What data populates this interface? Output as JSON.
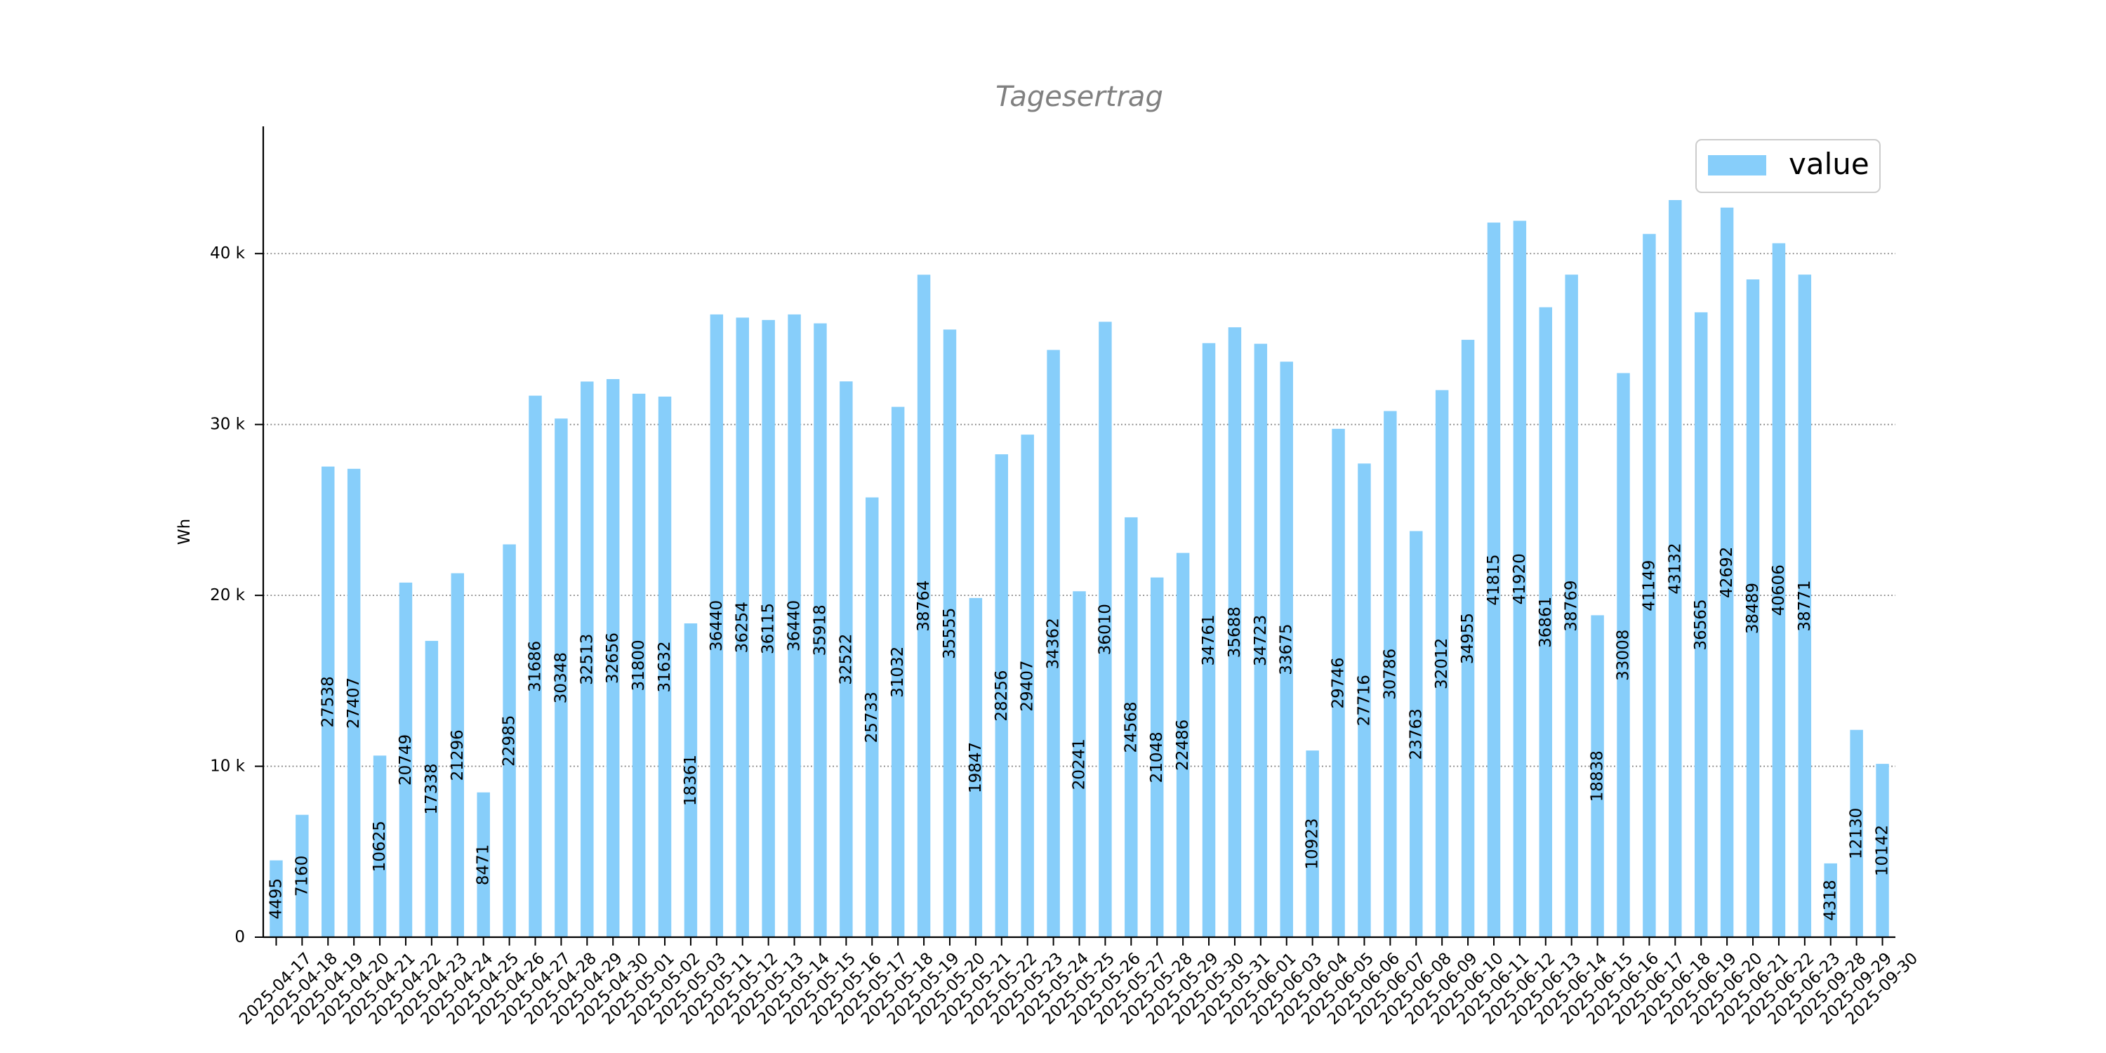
{
  "chart_data": {
    "type": "bar",
    "title": "Tagesertrag",
    "ylabel": "Wh",
    "categories": [
      "2025-04-17",
      "2025-04-18",
      "2025-04-19",
      "2025-04-20",
      "2025-04-21",
      "2025-04-22",
      "2025-04-23",
      "2025-04-24",
      "2025-04-25",
      "2025-04-26",
      "2025-04-27",
      "2025-04-28",
      "2025-04-29",
      "2025-04-30",
      "2025-05-01",
      "2025-05-02",
      "2025-05-03",
      "2025-05-11",
      "2025-05-12",
      "2025-05-13",
      "2025-05-14",
      "2025-05-15",
      "2025-05-16",
      "2025-05-17",
      "2025-05-18",
      "2025-05-19",
      "2025-05-20",
      "2025-05-21",
      "2025-05-22",
      "2025-05-23",
      "2025-05-24",
      "2025-05-25",
      "2025-05-26",
      "2025-05-27",
      "2025-05-28",
      "2025-05-29",
      "2025-05-30",
      "2025-05-31",
      "2025-06-01",
      "2025-06-03",
      "2025-06-04",
      "2025-06-05",
      "2025-06-06",
      "2025-06-07",
      "2025-06-08",
      "2025-06-09",
      "2025-06-10",
      "2025-06-11",
      "2025-06-12",
      "2025-06-13",
      "2025-06-14",
      "2025-06-15",
      "2025-06-16",
      "2025-06-17",
      "2025-06-18",
      "2025-06-19",
      "2025-06-20",
      "2025-06-21",
      "2025-06-22",
      "2025-06-23",
      "2025-09-28",
      "2025-09-29",
      "2025-09-30"
    ],
    "series": [
      {
        "name": "value",
        "values": [
          4495,
          7160,
          27538,
          27407,
          10625,
          20749,
          17338,
          21296,
          8471,
          22985,
          31686,
          30348,
          32513,
          32656,
          31800,
          31632,
          18361,
          36440,
          36254,
          36115,
          36440,
          35918,
          32522,
          25733,
          31032,
          38764,
          35555,
          19847,
          28256,
          29407,
          34362,
          20241,
          36010,
          24568,
          21048,
          22486,
          34761,
          35688,
          34723,
          33675,
          10923,
          29746,
          27716,
          30786,
          23763,
          32012,
          34955,
          41815,
          41920,
          36861,
          38769,
          18838,
          33008,
          41149,
          43132,
          36565,
          42692,
          38489,
          40606,
          38771,
          4318,
          12130,
          10142
        ]
      }
    ],
    "ylim": [
      0,
      47445
    ],
    "yticks": [
      0,
      10000,
      20000,
      30000,
      40000
    ],
    "ytick_labels": [
      "0",
      "10 k",
      "20 k",
      "30 k",
      "40 k"
    ],
    "grid": true,
    "legend_position": "top-right",
    "colors": {
      "bar": "#87CEFA",
      "title": "#808080",
      "grid": "#808080"
    }
  }
}
